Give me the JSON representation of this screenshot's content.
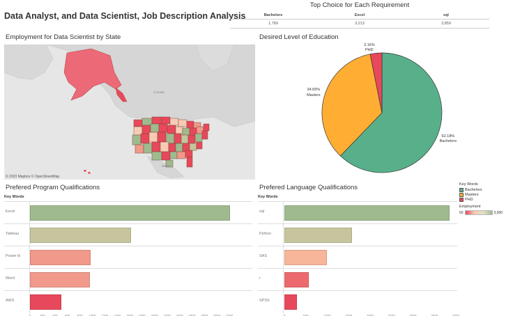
{
  "dashboard_title": "Data Analyst, and Data Scientist, Job Description Analysis",
  "top_choice": {
    "title": "Top Choice for Each Requirement",
    "headers": [
      "Bachelors",
      "Excel",
      "sql"
    ],
    "values": [
      "1,789",
      "3,213",
      "3,859"
    ]
  },
  "map": {
    "title": "Employment for Data Scientist by State",
    "credit": "© 2023 Mapbox © OpenStreetMap",
    "labels": {
      "canada": "Canada",
      "mexico": "Mexico"
    }
  },
  "education": {
    "title": "Desired Level of Education",
    "slices": [
      {
        "name": "Bachelors",
        "pct": 62.18,
        "label": "62.18%",
        "color": "#58b08a"
      },
      {
        "name": "Masters",
        "pct": 34.65,
        "label": "34.65%",
        "color": "#ffad33"
      },
      {
        "name": "PHD",
        "pct": 3.16,
        "label": "3.16%",
        "color": "#e8485b"
      }
    ]
  },
  "legend": {
    "title": "Key Words",
    "items": [
      {
        "label": "Bachelors",
        "color": "#58b08a"
      },
      {
        "label": "Masters",
        "color": "#ffad33"
      },
      {
        "label": "PHD",
        "color": "#e8485b"
      }
    ],
    "employment_title": "Employment",
    "employment_min": "60",
    "employment_max": "3,000"
  },
  "program": {
    "title": "Prefered Program Qualifications",
    "col_header": "Key Words",
    "axis_max": 3400,
    "ticks": [
      "0",
      "200",
      "400",
      "600",
      "800",
      "1000",
      "1200",
      "1400",
      "1600",
      "1800",
      "2000",
      "2200",
      "2400",
      "2600",
      "2800",
      "3000",
      "3200"
    ],
    "rows": [
      {
        "label": "Excel",
        "value": 3213,
        "color": "#9fba8f"
      },
      {
        "label": "Tableau",
        "value": 1620,
        "color": "#c6c59d"
      },
      {
        "label": "Power bi",
        "value": 970,
        "color": "#f1998a"
      },
      {
        "label": "Word",
        "value": 960,
        "color": "#f1998a"
      },
      {
        "label": "AWS",
        "value": 500,
        "color": "#e8485b"
      }
    ]
  },
  "language": {
    "title": "Prefered Language Qualifications",
    "col_header": "Key Words",
    "axis_max": 4000,
    "ticks": [
      "0",
      "500",
      "1000",
      "1500",
      "2000",
      "2500",
      "3000",
      "3500",
      "4000"
    ],
    "rows": [
      {
        "label": "sql",
        "value": 3859,
        "color": "#9fba8f"
      },
      {
        "label": "Python",
        "value": 1580,
        "color": "#c6c59d"
      },
      {
        "label": "SAS",
        "value": 990,
        "color": "#f7b59a"
      },
      {
        "label": "r",
        "value": 570,
        "color": "#ec6a6e"
      },
      {
        "label": "SPSS",
        "value": 300,
        "color": "#e8485b"
      }
    ]
  }
}
